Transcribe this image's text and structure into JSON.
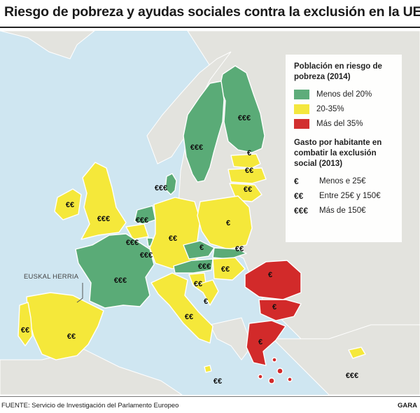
{
  "title": "Riesgo de pobreza y ayudas sociales contra la exclusión en la UE",
  "colors": {
    "sea": "#cfe6f1",
    "non_eu": "#e3e3de",
    "low": "#5aab77",
    "mid": "#f5e83a",
    "high": "#d22a2a",
    "border": "#ffffff"
  },
  "legend": {
    "risk_title": "Población en riesgo de pobreza (2014)",
    "risk_items": [
      {
        "label": "Menos del 20%",
        "color": "#5aab77"
      },
      {
        "label": "20-35%",
        "color": "#f5e83a"
      },
      {
        "label": "Más del 35%",
        "color": "#d22a2a"
      }
    ],
    "spend_title": "Gasto por habitante en combatir la exclusión social (2013)",
    "spend_items": [
      {
        "symbol": "€",
        "label": "Menos e 25€"
      },
      {
        "symbol": "€€",
        "label": "Entre 25€ y 150€"
      },
      {
        "symbol": "€€€",
        "label": "Más de 150€"
      }
    ]
  },
  "map": {
    "region_label": "EUSKAL HERRIA",
    "countries": [
      {
        "name": "Finland",
        "risk": "low",
        "euros": "€€€"
      },
      {
        "name": "Sweden",
        "risk": "low",
        "euros": "€€€"
      },
      {
        "name": "Denmark",
        "risk": "low",
        "euros": "€€€"
      },
      {
        "name": "Estonia",
        "risk": "mid",
        "euros": "€"
      },
      {
        "name": "Latvia",
        "risk": "mid",
        "euros": "€€"
      },
      {
        "name": "Lithuania",
        "risk": "mid",
        "euros": "€€"
      },
      {
        "name": "Ireland",
        "risk": "mid",
        "euros": "€€"
      },
      {
        "name": "United Kingdom",
        "risk": "mid",
        "euros": "€€€"
      },
      {
        "name": "Netherlands",
        "risk": "low",
        "euros": "€€€"
      },
      {
        "name": "Belgium",
        "risk": "mid",
        "euros": "€€€"
      },
      {
        "name": "Luxembourg",
        "risk": "low",
        "euros": "€€€"
      },
      {
        "name": "Germany",
        "risk": "mid",
        "euros": "€€"
      },
      {
        "name": "Poland",
        "risk": "mid",
        "euros": "€"
      },
      {
        "name": "Czech Republic",
        "risk": "low",
        "euros": "€"
      },
      {
        "name": "Slovakia",
        "risk": "low",
        "euros": "€€"
      },
      {
        "name": "Austria",
        "risk": "low",
        "euros": "€€€"
      },
      {
        "name": "Hungary",
        "risk": "mid",
        "euros": "€€"
      },
      {
        "name": "Slovenia",
        "risk": "mid",
        "euros": "€€"
      },
      {
        "name": "Croatia",
        "risk": "mid",
        "euros": "€"
      },
      {
        "name": "France",
        "risk": "low",
        "euros": "€€€"
      },
      {
        "name": "Spain",
        "risk": "mid",
        "euros": "€€"
      },
      {
        "name": "Portugal",
        "risk": "mid",
        "euros": "€€"
      },
      {
        "name": "Italy",
        "risk": "mid",
        "euros": "€€"
      },
      {
        "name": "Romania",
        "risk": "high",
        "euros": "€"
      },
      {
        "name": "Bulgaria",
        "risk": "high",
        "euros": "€"
      },
      {
        "name": "Greece",
        "risk": "high",
        "euros": "€"
      },
      {
        "name": "Malta",
        "risk": "mid",
        "euros": "€€"
      },
      {
        "name": "Cyprus",
        "risk": "mid",
        "euros": "€€€"
      }
    ]
  },
  "footer": {
    "source": "FUENTE: Servicio de Investigación del Parlamento Europeo",
    "brand": "GARA"
  }
}
